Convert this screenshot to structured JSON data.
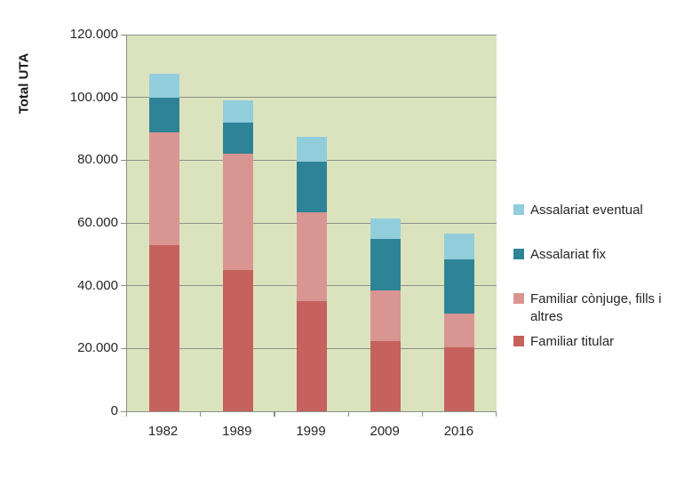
{
  "chart_data": {
    "type": "bar",
    "stacked": true,
    "ylabel": "Total UTA",
    "categories": [
      "1982",
      "1989",
      "1999",
      "2009",
      "2016"
    ],
    "series": [
      {
        "name": "Familiar titular",
        "color": "#c5625d",
        "values": [
          53000,
          45000,
          35000,
          22500,
          20500
        ]
      },
      {
        "name": "Familiar cònjuge, fills i altres",
        "color": "#d99592",
        "values": [
          36000,
          37000,
          28500,
          16000,
          10500
        ]
      },
      {
        "name": "Assalariat fix",
        "color": "#2f8396",
        "values": [
          11000,
          10000,
          16000,
          16500,
          17500
        ]
      },
      {
        "name": "Assalariat eventual",
        "color": "#92cddc",
        "values": [
          7500,
          7000,
          8000,
          6500,
          8000
        ]
      }
    ],
    "totals": [
      107500,
      99000,
      87500,
      61500,
      56500
    ],
    "ylim": [
      0,
      120000
    ],
    "ytick_step": 20000,
    "ytick_labels": [
      "0",
      "20.000",
      "40.000",
      "60.000",
      "80.000",
      "100.000",
      "120.000"
    ],
    "grid": true,
    "plot_bg_color": "#dbe3be",
    "gridline_color": "#8c9187",
    "axis_color": "#8a8e83",
    "legend_position": "right",
    "legend_order": [
      3,
      2,
      1,
      0
    ]
  }
}
